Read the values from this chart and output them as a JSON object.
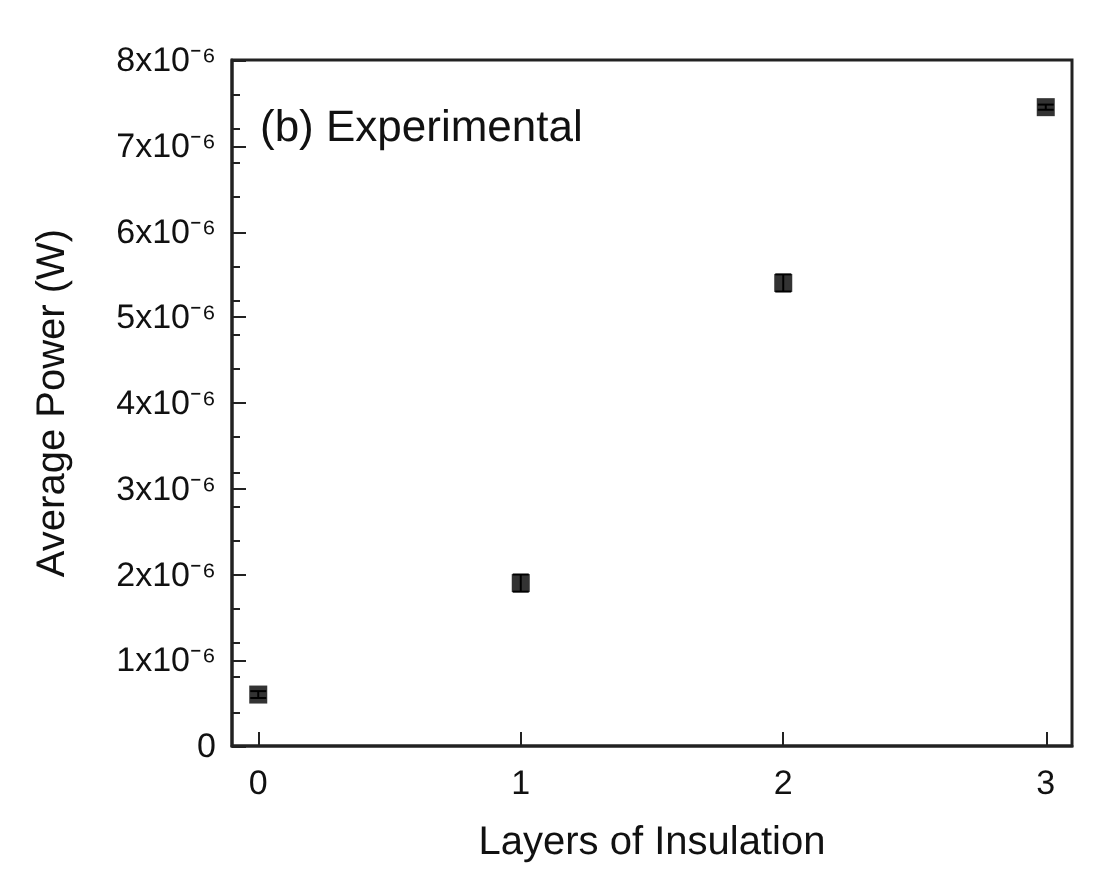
{
  "chart_data": {
    "type": "scatter",
    "xlabel": "Layers of Insulation",
    "ylabel": "Average Power (W)",
    "annotations": [
      "(b) Experimental"
    ],
    "x": [
      0,
      1,
      2,
      3
    ],
    "series": [
      {
        "color": "#000000",
        "values": [
          6e-07,
          1.9e-06,
          5.4e-06,
          7.45e-06
        ],
        "errors": [
          4e-08,
          1e-07,
          1e-07,
          3e-08
        ]
      }
    ],
    "marker": "square",
    "grid": false,
    "xlim": [
      -0.1,
      3.1
    ],
    "xticks": [
      0,
      1,
      2,
      3
    ],
    "ylim": [
      0,
      8e-06
    ],
    "yticks": [
      {
        "value": 0,
        "label": "0"
      },
      {
        "value": 1e-06,
        "label": "1x10⁻⁶"
      },
      {
        "value": 2e-06,
        "label": "2x10⁻⁶"
      },
      {
        "value": 3e-06,
        "label": "3x10⁻⁶"
      },
      {
        "value": 4e-06,
        "label": "4x10⁻⁶"
      },
      {
        "value": 5e-06,
        "label": "5x10⁻⁶"
      },
      {
        "value": 6e-06,
        "label": "6x10⁻⁶"
      },
      {
        "value": 7e-06,
        "label": "7x10⁻⁶"
      },
      {
        "value": 8e-06,
        "label": "8x10⁻⁶"
      }
    ]
  }
}
